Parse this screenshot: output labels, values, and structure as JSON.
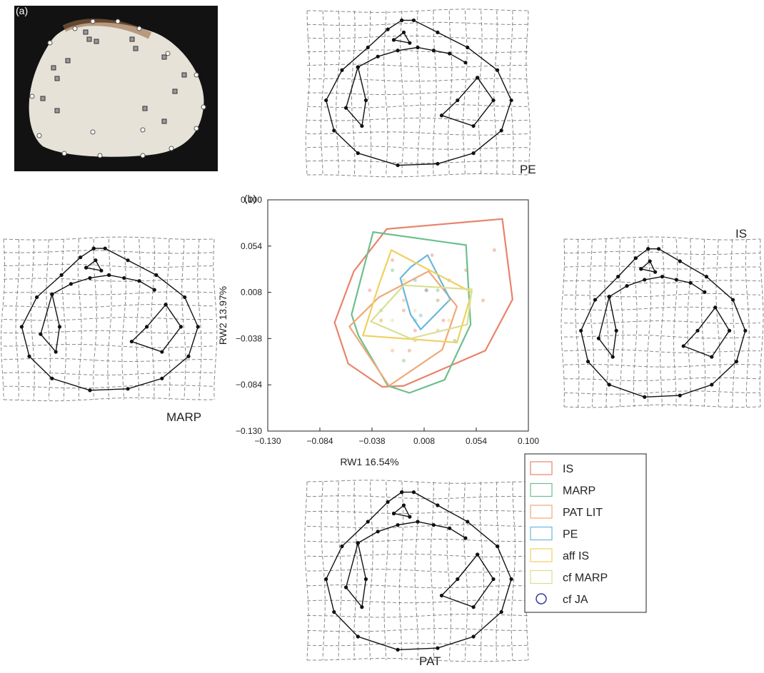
{
  "panels": {
    "a_label": "(a)",
    "b_label": "(b)",
    "grid_labels": [
      "PE",
      "MARP",
      "IS",
      "PAT"
    ]
  },
  "chart_data": {
    "type": "scatter",
    "xlabel": "RW1 16.54%",
    "ylabel": "RW2 13.97%",
    "xlim": [
      -0.13,
      0.1
    ],
    "ylim": [
      -0.13,
      0.1
    ],
    "xticks": [
      {
        "value": -0.13,
        "label": "−0.130"
      },
      {
        "value": -0.084,
        "label": "−0.084"
      },
      {
        "value": -0.038,
        "label": "−0.038"
      },
      {
        "value": 0.008,
        "label": "0.008"
      },
      {
        "value": 0.054,
        "label": "0.054"
      },
      {
        "value": 0.1,
        "label": "0.100"
      }
    ],
    "yticks": [
      {
        "value": -0.13,
        "label": "−0.130"
      },
      {
        "value": -0.084,
        "label": "−0.084"
      },
      {
        "value": -0.038,
        "label": "−0.038"
      },
      {
        "value": 0.008,
        "label": "0.008"
      },
      {
        "value": 0.054,
        "label": "0.054"
      },
      {
        "value": 0.1,
        "label": "0.100"
      }
    ],
    "series": [
      {
        "name": "IS",
        "color": "#e8846a",
        "marker": "square",
        "hull": {
          "x": [
            -0.025,
            0.077,
            0.086,
            0.062,
            -0.01,
            -0.029,
            -0.059,
            -0.071,
            -0.054
          ],
          "y": [
            0.071,
            0.081,
            0.001,
            -0.05,
            -0.085,
            -0.086,
            -0.063,
            -0.022,
            0.029
          ]
        },
        "x": [
          0.01,
          0.03,
          -0.01,
          0.045,
          0.06,
          -0.02,
          0.0,
          0.025,
          -0.04,
          0.07,
          0.015,
          -0.005
        ],
        "y": [
          0.01,
          0.02,
          -0.01,
          0.03,
          0.0,
          0.04,
          -0.03,
          -0.02,
          0.01,
          0.05,
          0.045,
          -0.05
        ]
      },
      {
        "name": "MARP",
        "color": "#6dbf8c",
        "marker": "square",
        "hull": {
          "x": [
            -0.037,
            0.045,
            0.049,
            0.026,
            -0.005,
            -0.024,
            -0.05,
            -0.056
          ],
          "y": [
            0.068,
            0.055,
            -0.024,
            -0.079,
            -0.092,
            -0.085,
            -0.035,
            -0.014
          ]
        },
        "x": [
          -0.02,
          0.0,
          0.02,
          -0.03,
          0.035,
          -0.01
        ],
        "y": [
          0.03,
          -0.02,
          0.01,
          -0.01,
          -0.04,
          -0.06
        ]
      },
      {
        "name": "PAT LIT",
        "color": "#f0a878",
        "marker": "square",
        "hull": {
          "x": [
            -0.058,
            -0.032,
            0.012,
            0.037,
            0.024,
            -0.023
          ],
          "y": [
            -0.026,
            0.003,
            0.029,
            -0.006,
            -0.049,
            -0.085
          ]
        },
        "x": [
          -0.03,
          -0.01,
          0.01,
          0.02,
          -0.02,
          0.0
        ],
        "y": [
          -0.02,
          0.0,
          0.01,
          -0.03,
          -0.05,
          -0.04
        ]
      },
      {
        "name": "PE",
        "color": "#6ab7dc",
        "marker": "square",
        "hull": {
          "x": [
            -0.004,
            0.011,
            0.031,
            0.005,
            -0.004,
            -0.013
          ],
          "y": [
            0.033,
            0.045,
            0.001,
            -0.029,
            -0.014,
            0.022
          ]
        },
        "x": [
          0.0,
          0.01,
          0.02,
          0.005
        ],
        "y": [
          0.02,
          0.01,
          0.0,
          -0.015
        ]
      },
      {
        "name": "aff IS",
        "color": "#f0d060",
        "marker": "square",
        "hull": {
          "x": [
            -0.021,
            0.05,
            0.037,
            -0.046,
            -0.032
          ],
          "y": [
            0.05,
            0.008,
            -0.042,
            -0.035,
            0.015
          ]
        },
        "x": [
          -0.01,
          0.02,
          0.03,
          -0.03
        ],
        "y": [
          0.02,
          0.0,
          -0.02,
          -0.02
        ]
      },
      {
        "name": "cf MARP",
        "color": "#d8e090",
        "marker": "square",
        "hull": {
          "x": [
            -0.039,
            -0.01,
            0.05,
            0.046,
            -0.004
          ],
          "y": [
            -0.021,
            0.015,
            0.011,
            -0.024,
            -0.038
          ]
        },
        "x": [
          0.0,
          0.03,
          -0.02
        ],
        "y": [
          -0.01,
          0.0,
          -0.02
        ]
      },
      {
        "name": "cf JA",
        "color": "#3a3a9a",
        "marker": "circle",
        "x": [],
        "y": []
      }
    ]
  }
}
